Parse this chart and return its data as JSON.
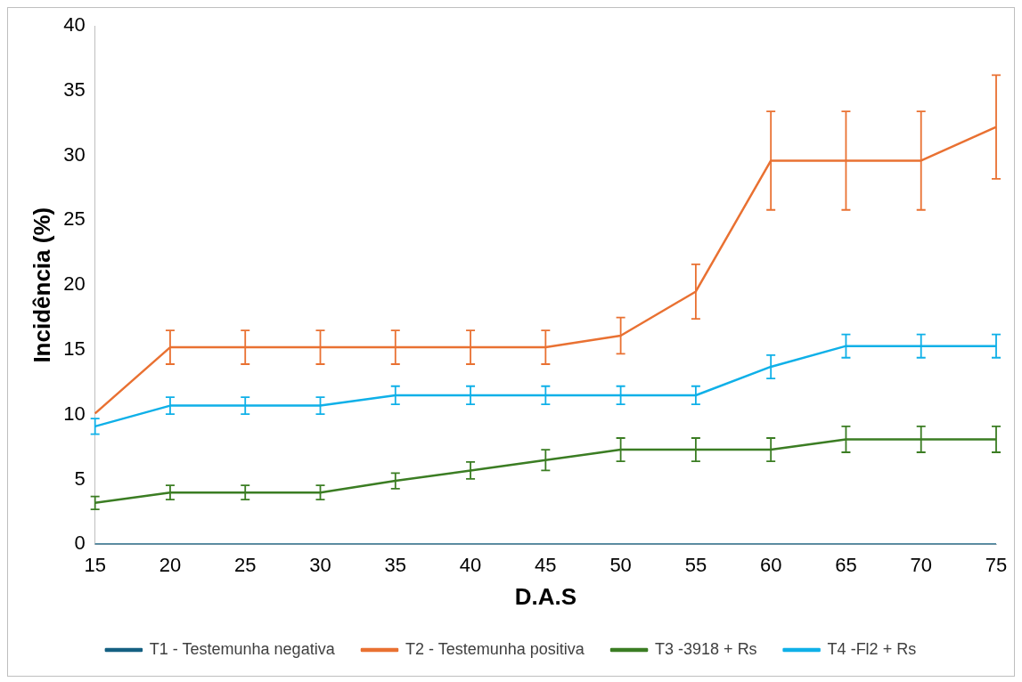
{
  "chart_data": {
    "type": "line",
    "xlabel": "D.A.S",
    "ylabel": "Incidência (%)",
    "categories": [
      "15",
      "20",
      "25",
      "30",
      "35",
      "40",
      "45",
      "50",
      "55",
      "60",
      "65",
      "70",
      "75"
    ],
    "ylim": [
      0,
      40
    ],
    "yticks": [
      0,
      5,
      10,
      15,
      20,
      25,
      30,
      35,
      40
    ],
    "grid": false,
    "legend": "bottom",
    "marker": "none",
    "line_style": "solid",
    "series": [
      {
        "name": "T1 - Testemunha negativa",
        "color": "#156082",
        "values": [
          0,
          0,
          0,
          0,
          0,
          0,
          0,
          0,
          0,
          0,
          0,
          0,
          0
        ]
      },
      {
        "name": "T2 - Testemunha positiva",
        "color": "#e97132",
        "values": [
          10.1,
          15.2,
          15.2,
          15.2,
          15.2,
          15.2,
          15.2,
          16.1,
          19.5,
          29.6,
          29.6,
          29.6,
          32.2
        ],
        "errors": [
          null,
          1.3,
          1.3,
          1.3,
          1.3,
          1.3,
          1.3,
          1.4,
          2.1,
          3.8,
          3.8,
          3.8,
          4.0
        ]
      },
      {
        "name": "T3 -3918 + Rs",
        "color": "#3b7d23",
        "values": [
          3.2,
          4.0,
          4.0,
          4.0,
          4.9,
          5.7,
          6.5,
          7.3,
          7.3,
          7.3,
          8.1,
          8.1,
          8.1
        ],
        "errors": [
          0.5,
          0.55,
          0.55,
          0.55,
          0.6,
          0.65,
          0.8,
          0.9,
          0.9,
          0.9,
          1.0,
          1.0,
          1.0
        ]
      },
      {
        "name": "T4 -Fl2 + Rs",
        "color": "#0fb0e8",
        "values": [
          9.1,
          10.7,
          10.7,
          10.7,
          11.5,
          11.5,
          11.5,
          11.5,
          11.5,
          13.7,
          15.3,
          15.3,
          15.3
        ],
        "errors": [
          0.6,
          0.65,
          0.65,
          0.65,
          0.7,
          0.7,
          0.7,
          0.7,
          0.7,
          0.9,
          0.9,
          0.9,
          0.9
        ]
      }
    ]
  }
}
